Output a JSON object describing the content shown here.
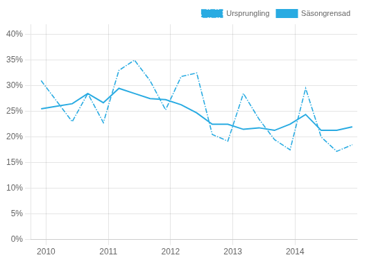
{
  "chart_data": {
    "type": "line",
    "x": [
      2009.92,
      2010.17,
      2010.42,
      2010.67,
      2010.92,
      2011.17,
      2011.42,
      2011.67,
      2011.92,
      2012.17,
      2012.42,
      2012.67,
      2012.92,
      2013.17,
      2013.42,
      2013.67,
      2013.92,
      2014.17,
      2014.42,
      2014.67,
      2014.92
    ],
    "series": [
      {
        "name": "Ursprungling",
        "color": "#29ABE2",
        "line_style": "dashdot",
        "marker": "none",
        "values": [
          0.31,
          0.27,
          0.23,
          0.285,
          0.228,
          0.33,
          0.35,
          0.31,
          0.253,
          0.318,
          0.325,
          0.205,
          0.192,
          0.285,
          0.235,
          0.195,
          0.175,
          0.295,
          0.2,
          0.172,
          0.185
        ]
      },
      {
        "name": "Säsongrensad",
        "color": "#29ABE2",
        "line_style": "solid",
        "marker": "none",
        "values": [
          0.255,
          0.26,
          0.265,
          0.285,
          0.267,
          0.295,
          0.285,
          0.275,
          0.273,
          0.263,
          0.247,
          0.225,
          0.225,
          0.215,
          0.218,
          0.213,
          0.225,
          0.244,
          0.213,
          0.213,
          0.22
        ]
      }
    ],
    "xlim": [
      2009.75,
      2015.0
    ],
    "xticks": [
      2010,
      2011,
      2012,
      2013,
      2014
    ],
    "ylim": [
      0,
      0.42
    ],
    "yticks": [
      {
        "value": 0.0,
        "label": "0%"
      },
      {
        "value": 0.05,
        "label": "5%"
      },
      {
        "value": 0.1,
        "label": "10%"
      },
      {
        "value": 0.15,
        "label": "15%"
      },
      {
        "value": 0.2,
        "label": "20%"
      },
      {
        "value": 0.25,
        "label": "25%"
      },
      {
        "value": 0.3,
        "label": "30%"
      },
      {
        "value": 0.35,
        "label": "35%"
      },
      {
        "value": 0.4,
        "label": "40%"
      }
    ],
    "grid": true,
    "legend": "upper right"
  }
}
